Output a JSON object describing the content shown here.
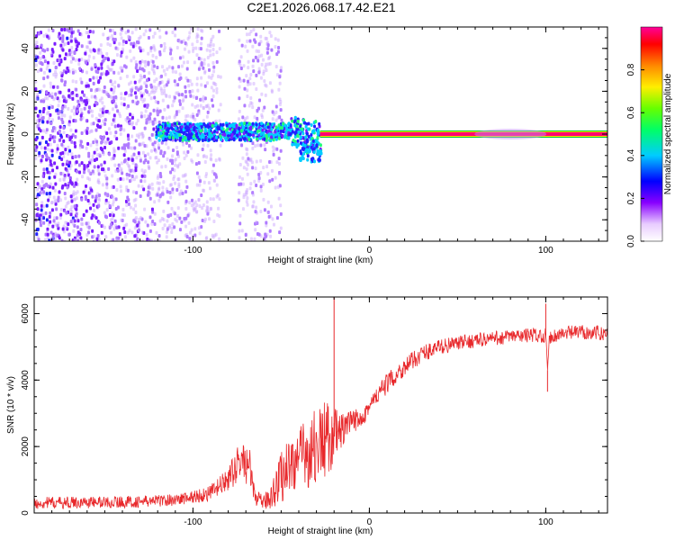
{
  "title": "C2E1.2026.068.17.42.E21",
  "colors": {
    "snr_line": "#e8282b",
    "tone_core": "#ff0070",
    "tone_edge": "#00cc33",
    "axis": "#000000"
  },
  "chart_data": [
    {
      "type": "heatmap",
      "title": "C2E1.2026.068.17.42.E21",
      "xlabel": "Height of straight line (km)",
      "ylabel": "Frequency (Hz)",
      "xlim": [
        -190,
        135
      ],
      "ylim": [
        -50,
        50
      ],
      "xticks": [
        -100,
        0,
        100
      ],
      "xtick_labels": [
        "-100",
        "0",
        "100"
      ],
      "yticks": [
        -40,
        -20,
        0,
        20,
        40
      ],
      "ytick_labels": [
        "-40",
        "-20",
        "0",
        "20",
        "40"
      ],
      "colorbar": {
        "label": "Normalized spectral amplitude",
        "range": [
          0,
          1
        ],
        "ticks": [
          0.0,
          0.2,
          0.4,
          0.6,
          0.8
        ],
        "tick_labels": [
          "0.0",
          "0.2",
          "0.4",
          "0.6",
          "0.8"
        ]
      },
      "features": {
        "noise_band_x_km": [
          -190,
          -85
        ],
        "sparse_noise_x_km": [
          -75,
          -50
        ],
        "broadened_signal_x_km": [
          -122,
          -28
        ],
        "broadened_signal_freq_hz": [
          -12,
          6
        ],
        "narrow_tone_x_km": [
          -28,
          135
        ],
        "narrow_tone_freq_hz": 0,
        "narrow_tone_amplitude": 1.0
      }
    },
    {
      "type": "line",
      "xlabel": "Height of straight line (km)",
      "ylabel": "SNR (10 * v/v)",
      "xlim": [
        -190,
        135
      ],
      "ylim": [
        0,
        6500
      ],
      "xticks": [
        -100,
        0,
        100
      ],
      "xtick_labels": [
        "-100",
        "0",
        "100"
      ],
      "yticks": [
        0,
        2000,
        4000,
        6000
      ],
      "ytick_labels": [
        "0",
        "2000",
        "4000",
        "6000"
      ],
      "series": [
        {
          "name": "SNR",
          "x": [
            -190,
            -160,
            -130,
            -110,
            -100,
            -90,
            -80,
            -73,
            -68,
            -65,
            -60,
            -55,
            -50,
            -45,
            -40,
            -35,
            -30,
            -25,
            -20,
            -15,
            -10,
            -5,
            0,
            10,
            20,
            30,
            40,
            50,
            60,
            70,
            80,
            90,
            95,
            100,
            101,
            102,
            110,
            120,
            135
          ],
          "mean": [
            300,
            320,
            340,
            400,
            480,
            600,
            1000,
            1600,
            1400,
            500,
            300,
            600,
            1100,
            1500,
            1600,
            1800,
            2000,
            2200,
            2300,
            2500,
            2700,
            2900,
            3200,
            3900,
            4400,
            4800,
            5000,
            5100,
            5200,
            5250,
            5300,
            5350,
            5350,
            5350,
            4300,
            5300,
            5400,
            5450,
            5400
          ],
          "jitter": [
            180,
            180,
            180,
            180,
            200,
            250,
            350,
            600,
            600,
            250,
            200,
            500,
            800,
            900,
            1000,
            1100,
            1200,
            1200,
            900,
            500,
            400,
            350,
            320,
            300,
            280,
            260,
            240,
            220,
            220,
            220,
            220,
            220,
            220,
            220,
            0,
            220,
            220,
            220,
            220
          ],
          "spikes": [
            {
              "x": -20,
              "y": 6500
            },
            {
              "x": 100,
              "y": 6300
            },
            {
              "x": 101,
              "y": 3650
            }
          ]
        }
      ]
    }
  ]
}
